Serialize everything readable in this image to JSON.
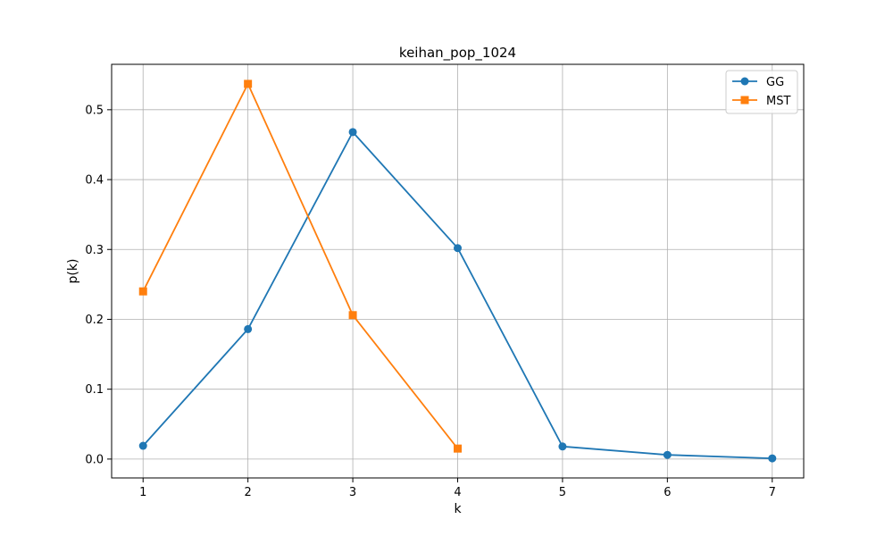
{
  "chart_data": {
    "type": "line",
    "title": "keihan_pop_1024",
    "xlabel": "k",
    "ylabel": "p(k)",
    "xlim": [
      0.7,
      7.3
    ],
    "ylim": [
      -0.027,
      0.565
    ],
    "xticks": [
      1,
      2,
      3,
      4,
      5,
      6,
      7
    ],
    "yticks": [
      0.0,
      0.1,
      0.2,
      0.3,
      0.4,
      0.5
    ],
    "ytick_labels": [
      "0.0",
      "0.1",
      "0.2",
      "0.3",
      "0.4",
      "0.5"
    ],
    "grid": true,
    "legend_position": "top-right",
    "series": [
      {
        "name": "GG",
        "color": "#1f77b4",
        "marker": "circle",
        "x": [
          1,
          2,
          3,
          4,
          5,
          6,
          7
        ],
        "y": [
          0.019,
          0.186,
          0.468,
          0.302,
          0.018,
          0.006,
          0.001
        ]
      },
      {
        "name": "MST",
        "color": "#ff7f0e",
        "marker": "square",
        "x": [
          1,
          2,
          3,
          4
        ],
        "y": [
          0.24,
          0.537,
          0.206,
          0.015
        ]
      }
    ]
  }
}
